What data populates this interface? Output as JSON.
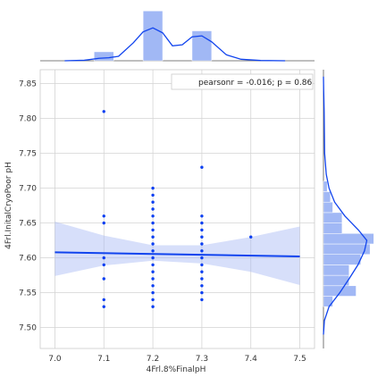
{
  "chart_data": {
    "type": "scatter",
    "xlabel": "4Frl.8%FinalpH",
    "ylabel": "4Frl.InitalCryoPoor pH",
    "xlim": [
      6.97,
      7.53
    ],
    "ylim": [
      7.47,
      7.87
    ],
    "x_ticks": [
      "7.0",
      "7.1",
      "7.2",
      "7.3",
      "7.4",
      "7.5"
    ],
    "y_ticks": [
      "7.50",
      "7.55",
      "7.60",
      "7.65",
      "7.70",
      "7.75",
      "7.80",
      "7.85"
    ],
    "grid": true,
    "legend": {
      "text": "pearsonr = -0.016; p = 0.86",
      "position": "top-right"
    },
    "points": [
      {
        "x": 7.1,
        "y": 7.81
      },
      {
        "x": 7.1,
        "y": 7.66
      },
      {
        "x": 7.1,
        "y": 7.65
      },
      {
        "x": 7.1,
        "y": 7.6
      },
      {
        "x": 7.1,
        "y": 7.59
      },
      {
        "x": 7.1,
        "y": 7.57
      },
      {
        "x": 7.1,
        "y": 7.54
      },
      {
        "x": 7.1,
        "y": 7.53
      },
      {
        "x": 7.2,
        "y": 7.7
      },
      {
        "x": 7.2,
        "y": 7.69
      },
      {
        "x": 7.2,
        "y": 7.68
      },
      {
        "x": 7.2,
        "y": 7.67
      },
      {
        "x": 7.2,
        "y": 7.66
      },
      {
        "x": 7.2,
        "y": 7.65
      },
      {
        "x": 7.2,
        "y": 7.64
      },
      {
        "x": 7.2,
        "y": 7.63
      },
      {
        "x": 7.2,
        "y": 7.62
      },
      {
        "x": 7.2,
        "y": 7.61
      },
      {
        "x": 7.2,
        "y": 7.6
      },
      {
        "x": 7.2,
        "y": 7.59
      },
      {
        "x": 7.2,
        "y": 7.58
      },
      {
        "x": 7.2,
        "y": 7.57
      },
      {
        "x": 7.2,
        "y": 7.56
      },
      {
        "x": 7.2,
        "y": 7.55
      },
      {
        "x": 7.2,
        "y": 7.54
      },
      {
        "x": 7.2,
        "y": 7.53
      },
      {
        "x": 7.3,
        "y": 7.73
      },
      {
        "x": 7.3,
        "y": 7.66
      },
      {
        "x": 7.3,
        "y": 7.65
      },
      {
        "x": 7.3,
        "y": 7.64
      },
      {
        "x": 7.3,
        "y": 7.63
      },
      {
        "x": 7.3,
        "y": 7.62
      },
      {
        "x": 7.3,
        "y": 7.61
      },
      {
        "x": 7.3,
        "y": 7.6
      },
      {
        "x": 7.3,
        "y": 7.59
      },
      {
        "x": 7.3,
        "y": 7.58
      },
      {
        "x": 7.3,
        "y": 7.57
      },
      {
        "x": 7.3,
        "y": 7.56
      },
      {
        "x": 7.3,
        "y": 7.55
      },
      {
        "x": 7.3,
        "y": 7.54
      },
      {
        "x": 7.4,
        "y": 7.63
      }
    ],
    "regression": {
      "x": [
        7.0,
        7.5
      ],
      "y": [
        7.608,
        7.602
      ],
      "ci_band": [
        {
          "x": 7.0,
          "lo": 7.574,
          "hi": 7.652
        },
        {
          "x": 7.1,
          "lo": 7.589,
          "hi": 7.632
        },
        {
          "x": 7.2,
          "lo": 7.596,
          "hi": 7.618
        },
        {
          "x": 7.3,
          "lo": 7.592,
          "hi": 7.618
        },
        {
          "x": 7.4,
          "lo": 7.58,
          "hi": 7.63
        },
        {
          "x": 7.5,
          "lo": 7.561,
          "hi": 7.645
        }
      ]
    },
    "marginal_x": {
      "bins": [
        {
          "x0": 7.08,
          "x1": 7.12,
          "density": 0.9
        },
        {
          "x0": 7.18,
          "x1": 7.22,
          "density": 5.0
        },
        {
          "x0": 7.28,
          "x1": 7.32,
          "density": 3.0
        }
      ],
      "density_max": 5.2,
      "kde": [
        [
          7.02,
          0.0
        ],
        [
          7.06,
          0.05
        ],
        [
          7.09,
          0.25
        ],
        [
          7.11,
          0.3
        ],
        [
          7.13,
          0.45
        ],
        [
          7.16,
          1.8
        ],
        [
          7.18,
          2.9
        ],
        [
          7.2,
          3.3
        ],
        [
          7.22,
          2.8
        ],
        [
          7.24,
          1.5
        ],
        [
          7.26,
          1.6
        ],
        [
          7.28,
          2.4
        ],
        [
          7.3,
          2.5
        ],
        [
          7.32,
          1.9
        ],
        [
          7.35,
          0.6
        ],
        [
          7.38,
          0.15
        ],
        [
          7.42,
          0.03
        ],
        [
          7.47,
          0.0
        ]
      ]
    },
    "marginal_y": {
      "bins": [
        {
          "y0": 7.53,
          "y1": 7.545,
          "density": 2.0
        },
        {
          "y0": 7.545,
          "y1": 7.56,
          "density": 7.0
        },
        {
          "y0": 7.56,
          "y1": 7.575,
          "density": 5.5
        },
        {
          "y0": 7.575,
          "y1": 7.59,
          "density": 5.5
        },
        {
          "y0": 7.59,
          "y1": 7.605,
          "density": 8.0
        },
        {
          "y0": 7.605,
          "y1": 7.62,
          "density": 10.0
        },
        {
          "y0": 7.62,
          "y1": 7.635,
          "density": 10.8
        },
        {
          "y0": 7.635,
          "y1": 7.65,
          "density": 4.0
        },
        {
          "y0": 7.65,
          "y1": 7.665,
          "density": 4.0
        },
        {
          "y0": 7.665,
          "y1": 7.68,
          "density": 2.0
        },
        {
          "y0": 7.68,
          "y1": 7.695,
          "density": 1.5
        },
        {
          "y0": 7.695,
          "y1": 7.71,
          "density": 0.8
        }
      ],
      "density_max": 11.5,
      "kde": [
        [
          7.49,
          0.0
        ],
        [
          7.51,
          0.2
        ],
        [
          7.53,
          1.2
        ],
        [
          7.55,
          3.5
        ],
        [
          7.57,
          5.5
        ],
        [
          7.59,
          7.4
        ],
        [
          7.61,
          8.8
        ],
        [
          7.625,
          9.3
        ],
        [
          7.64,
          7.5
        ],
        [
          7.66,
          4.6
        ],
        [
          7.68,
          2.4
        ],
        [
          7.7,
          1.2
        ],
        [
          7.72,
          0.6
        ],
        [
          7.75,
          0.25
        ],
        [
          7.78,
          0.2
        ],
        [
          7.81,
          0.15
        ],
        [
          7.84,
          0.05
        ],
        [
          7.86,
          0.0
        ]
      ]
    },
    "colors": {
      "points": "#0b3ff2",
      "line": "#1144ee",
      "band": "#a7b8f5",
      "bars": "#8aa6f3",
      "grid": "#d4d4d4",
      "frame": "#cccccc"
    }
  }
}
